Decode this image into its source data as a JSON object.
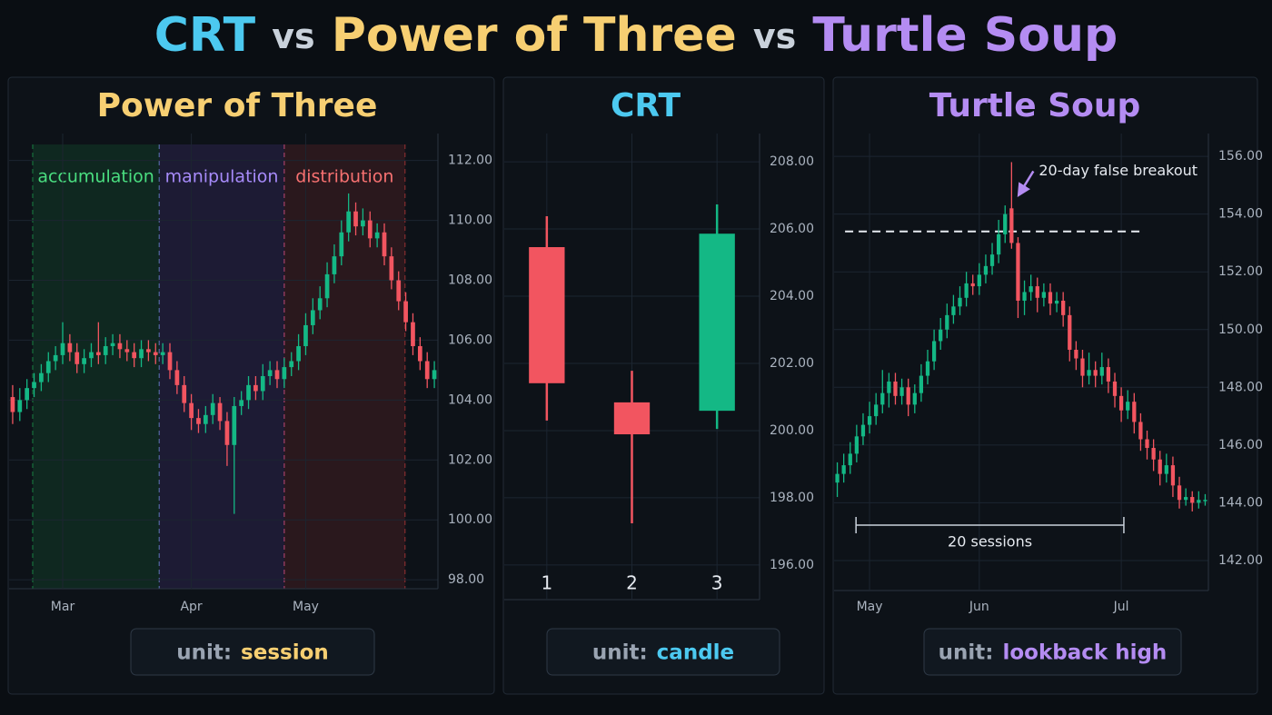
{
  "title_parts": [
    {
      "text": "CRT",
      "color": "#4cc9f0"
    },
    {
      "text": "vs",
      "color": "#c9d1db"
    },
    {
      "text": "Power of Three",
      "color": "#f7cf72"
    },
    {
      "text": "vs",
      "color": "#c9d1db"
    },
    {
      "text": "Turtle Soup",
      "color": "#b48cf2"
    }
  ],
  "chart_data": [
    {
      "type": "candlestick",
      "title": "Power of Three",
      "color": "#f7cf72",
      "up_color": "#14b885",
      "down_color": "#f25560",
      "unit_label": "unit:",
      "unit": "session",
      "ylim": [
        97.7,
        112.9
      ],
      "yticks": [
        {
          "value": 98,
          "label": "98.00"
        },
        {
          "value": 100,
          "label": "100.00"
        },
        {
          "value": 102,
          "label": "102.00"
        },
        {
          "value": 104,
          "label": "104.00"
        },
        {
          "value": 106,
          "label": "106.00"
        },
        {
          "value": 108,
          "label": "108.00"
        },
        {
          "value": 110,
          "label": "110.00"
        },
        {
          "value": 112,
          "label": "112.00"
        }
      ],
      "grid": true,
      "regions": [
        {
          "label": "accumulation",
          "color": "#22c55e",
          "text_color": "#4ade80",
          "from": 3.3,
          "to": 21
        },
        {
          "label": "manipulation",
          "color": "#8b5cf6",
          "text_color": "#a78bfa",
          "from": 21,
          "to": 38.5
        },
        {
          "label": "distribution",
          "color": "#ef4444",
          "text_color": "#f87171",
          "from": 38.5,
          "to": 55.4
        }
      ],
      "categories": [
        null,
        null,
        null,
        null,
        null,
        null,
        null,
        "Mar",
        null,
        null,
        null,
        null,
        null,
        null,
        null,
        null,
        null,
        null,
        null,
        null,
        null,
        null,
        null,
        null,
        null,
        "Apr",
        null,
        null,
        null,
        null,
        null,
        null,
        null,
        null,
        null,
        null,
        null,
        null,
        null,
        null,
        null,
        "May",
        null,
        null,
        null,
        null,
        null,
        null,
        null,
        null,
        null,
        null,
        null,
        null,
        null,
        null,
        null,
        null,
        null,
        null
      ],
      "ohlc": [
        [
          104.1,
          104.5,
          103.2,
          103.6
        ],
        [
          103.6,
          104.4,
          103.3,
          104.0
        ],
        [
          104.0,
          104.7,
          103.7,
          104.4
        ],
        [
          104.4,
          104.9,
          104.1,
          104.6
        ],
        [
          104.6,
          105.2,
          104.3,
          104.9
        ],
        [
          104.9,
          105.6,
          104.6,
          105.3
        ],
        [
          105.3,
          105.8,
          105.0,
          105.5
        ],
        [
          105.5,
          106.6,
          105.2,
          105.9
        ],
        [
          105.9,
          106.2,
          105.3,
          105.6
        ],
        [
          105.6,
          105.9,
          104.9,
          105.2
        ],
        [
          105.2,
          105.7,
          104.9,
          105.4
        ],
        [
          105.4,
          105.9,
          105.1,
          105.6
        ],
        [
          105.6,
          106.6,
          105.2,
          105.5
        ],
        [
          105.5,
          106.1,
          105.2,
          105.8
        ],
        [
          105.8,
          106.2,
          105.5,
          105.9
        ],
        [
          105.9,
          106.2,
          105.4,
          105.7
        ],
        [
          105.7,
          106.0,
          105.3,
          105.6
        ],
        [
          105.6,
          105.9,
          105.1,
          105.4
        ],
        [
          105.4,
          106.0,
          105.1,
          105.7
        ],
        [
          105.7,
          106.0,
          105.3,
          105.6
        ],
        [
          105.6,
          105.9,
          105.2,
          105.5
        ],
        [
          105.5,
          105.9,
          105.2,
          105.6
        ],
        [
          105.6,
          105.9,
          104.7,
          105.0
        ],
        [
          105.0,
          105.3,
          104.2,
          104.5
        ],
        [
          104.5,
          104.8,
          103.6,
          103.9
        ],
        [
          103.9,
          104.2,
          103.0,
          103.4
        ],
        [
          103.4,
          103.7,
          102.9,
          103.2
        ],
        [
          103.2,
          103.8,
          102.9,
          103.5
        ],
        [
          103.5,
          104.2,
          103.2,
          103.9
        ],
        [
          103.9,
          104.1,
          103.0,
          103.3
        ],
        [
          103.3,
          103.6,
          101.8,
          102.5
        ],
        [
          102.5,
          104.1,
          100.2,
          103.8
        ],
        [
          103.8,
          104.3,
          103.5,
          104.0
        ],
        [
          104.0,
          104.8,
          103.7,
          104.5
        ],
        [
          104.5,
          104.8,
          104.0,
          104.3
        ],
        [
          104.3,
          105.2,
          104.0,
          104.8
        ],
        [
          104.8,
          105.3,
          104.5,
          105.0
        ],
        [
          105.0,
          105.3,
          104.4,
          104.7
        ],
        [
          104.7,
          105.4,
          104.4,
          105.1
        ],
        [
          105.1,
          105.6,
          104.8,
          105.3
        ],
        [
          105.3,
          106.2,
          105.0,
          105.8
        ],
        [
          105.8,
          106.9,
          105.5,
          106.5
        ],
        [
          106.5,
          107.4,
          106.2,
          107.0
        ],
        [
          107.0,
          107.8,
          106.7,
          107.4
        ],
        [
          107.4,
          108.6,
          107.1,
          108.2
        ],
        [
          108.2,
          109.2,
          107.9,
          108.8
        ],
        [
          108.8,
          110.0,
          108.5,
          109.6
        ],
        [
          109.6,
          110.9,
          109.3,
          110.3
        ],
        [
          110.3,
          110.6,
          109.5,
          109.8
        ],
        [
          109.8,
          110.4,
          109.5,
          110.0
        ],
        [
          110.0,
          110.3,
          109.1,
          109.4
        ],
        [
          109.4,
          109.9,
          109.1,
          109.6
        ],
        [
          109.6,
          109.9,
          108.5,
          108.8
        ],
        [
          108.8,
          109.1,
          107.7,
          108.0
        ],
        [
          108.0,
          108.3,
          107.0,
          107.3
        ],
        [
          107.3,
          107.6,
          106.3,
          106.6
        ],
        [
          106.6,
          106.9,
          105.5,
          105.8
        ],
        [
          105.8,
          106.1,
          105.0,
          105.3
        ],
        [
          105.3,
          105.6,
          104.4,
          104.7
        ],
        [
          104.7,
          105.3,
          104.4,
          105.0
        ]
      ]
    },
    {
      "type": "candlestick",
      "title": "CRT",
      "color": "#4cc9f0",
      "up_color": "#14b885",
      "down_color": "#f25560",
      "unit_label": "unit:",
      "unit": "candle",
      "ylim": [
        194.97,
        208.84
      ],
      "yticks": [
        {
          "value": 196,
          "label": "196.00"
        },
        {
          "value": 198,
          "label": "198.00"
        },
        {
          "value": 200,
          "label": "200.00"
        },
        {
          "value": 202,
          "label": "202.00"
        },
        {
          "value": 204,
          "label": "204.00"
        },
        {
          "value": 206,
          "label": "206.00"
        },
        {
          "value": 208,
          "label": "208.00"
        }
      ],
      "grid": true,
      "categories": [
        "1",
        "2",
        "3"
      ],
      "ohlc": [
        [
          205.46,
          206.38,
          200.3,
          201.41
        ],
        [
          200.84,
          201.78,
          197.24,
          199.89
        ],
        [
          200.59,
          206.73,
          200.05,
          205.86
        ]
      ]
    },
    {
      "type": "candlestick",
      "title": "Turtle Soup",
      "color": "#b48cf2",
      "up_color": "#14b885",
      "down_color": "#f25560",
      "unit_label": "unit:",
      "unit": "lookback high",
      "ylim": [
        140.96,
        156.79
      ],
      "yticks": [
        {
          "value": 142,
          "label": "142.00"
        },
        {
          "value": 144,
          "label": "144.00"
        },
        {
          "value": 146,
          "label": "146.00"
        },
        {
          "value": 148,
          "label": "148.00"
        },
        {
          "value": 150,
          "label": "150.00"
        },
        {
          "value": 152,
          "label": "152.00"
        },
        {
          "value": 154,
          "label": "154.00"
        },
        {
          "value": 156,
          "label": "156.00"
        }
      ],
      "grid": true,
      "level": {
        "value": 153.4,
        "from": 1.7,
        "to": 47.5
      },
      "span": {
        "label": "20 sessions",
        "from": 3.4,
        "to": 44.9
      },
      "annotation": {
        "text": "20-day false breakout",
        "candle": 27
      },
      "categories": [
        null,
        null,
        null,
        null,
        null,
        "May",
        null,
        null,
        null,
        null,
        null,
        null,
        null,
        null,
        null,
        null,
        null,
        null,
        null,
        null,
        null,
        null,
        "Jun",
        null,
        null,
        null,
        null,
        null,
        null,
        null,
        null,
        null,
        null,
        null,
        null,
        null,
        null,
        null,
        null,
        null,
        null,
        null,
        null,
        null,
        "Jul",
        null,
        null,
        null,
        null,
        null,
        null,
        null,
        null,
        null,
        null,
        null,
        null,
        null
      ],
      "ohlc": [
        [
          144.7,
          145.4,
          144.2,
          145.0
        ],
        [
          145.0,
          145.7,
          144.7,
          145.3
        ],
        [
          145.3,
          146.1,
          145.0,
          145.7
        ],
        [
          145.7,
          146.7,
          145.4,
          146.3
        ],
        [
          146.3,
          147.1,
          146.0,
          146.7
        ],
        [
          146.7,
          147.5,
          146.4,
          147.0
        ],
        [
          147.0,
          147.8,
          146.7,
          147.4
        ],
        [
          147.4,
          148.6,
          147.1,
          147.8
        ],
        [
          147.8,
          148.5,
          147.3,
          148.2
        ],
        [
          148.2,
          148.5,
          147.4,
          147.7
        ],
        [
          147.7,
          148.3,
          147.4,
          148.0
        ],
        [
          148.0,
          148.3,
          147.0,
          147.4
        ],
        [
          147.4,
          148.1,
          147.1,
          147.8
        ],
        [
          147.8,
          148.8,
          147.5,
          148.4
        ],
        [
          148.4,
          149.3,
          148.1,
          148.9
        ],
        [
          148.9,
          150.0,
          148.6,
          149.6
        ],
        [
          149.6,
          150.4,
          149.3,
          150.0
        ],
        [
          150.0,
          150.9,
          149.7,
          150.5
        ],
        [
          150.5,
          151.2,
          150.2,
          150.8
        ],
        [
          150.8,
          151.5,
          150.5,
          151.1
        ],
        [
          151.1,
          152.0,
          150.8,
          151.6
        ],
        [
          151.6,
          151.9,
          151.2,
          151.5
        ],
        [
          151.5,
          152.3,
          151.2,
          151.9
        ],
        [
          151.9,
          152.6,
          151.6,
          152.2
        ],
        [
          152.2,
          153.0,
          151.9,
          152.6
        ],
        [
          152.6,
          153.8,
          152.3,
          153.3
        ],
        [
          153.3,
          154.3,
          153.0,
          154.0
        ],
        [
          154.2,
          155.8,
          152.8,
          153.0
        ],
        [
          153.0,
          153.2,
          150.4,
          151.0
        ],
        [
          151.0,
          151.7,
          150.5,
          151.3
        ],
        [
          151.3,
          151.9,
          151.0,
          151.5
        ],
        [
          151.5,
          151.8,
          150.6,
          151.1
        ],
        [
          151.1,
          151.6,
          150.8,
          151.3
        ],
        [
          151.3,
          151.6,
          150.5,
          150.9
        ],
        [
          150.9,
          151.3,
          150.6,
          151.0
        ],
        [
          151.0,
          151.3,
          150.1,
          150.5
        ],
        [
          150.5,
          150.8,
          148.9,
          149.3
        ],
        [
          149.3,
          149.6,
          148.6,
          149.0
        ],
        [
          149.0,
          149.3,
          148.0,
          148.4
        ],
        [
          148.4,
          149.2,
          148.1,
          148.6
        ],
        [
          148.6,
          148.9,
          148.0,
          148.4
        ],
        [
          148.4,
          149.2,
          148.1,
          148.7
        ],
        [
          148.7,
          149.0,
          147.8,
          148.2
        ],
        [
          148.2,
          148.5,
          147.3,
          147.7
        ],
        [
          147.7,
          148.0,
          146.8,
          147.2
        ],
        [
          147.2,
          147.9,
          146.9,
          147.5
        ],
        [
          147.5,
          147.8,
          146.4,
          146.8
        ],
        [
          146.8,
          147.1,
          145.8,
          146.2
        ],
        [
          146.2,
          146.5,
          145.5,
          145.9
        ],
        [
          145.9,
          146.2,
          145.1,
          145.5
        ],
        [
          145.5,
          145.8,
          144.6,
          145.0
        ],
        [
          145.0,
          145.7,
          144.7,
          145.3
        ],
        [
          145.3,
          145.6,
          144.2,
          144.6
        ],
        [
          144.6,
          144.9,
          143.8,
          144.1
        ],
        [
          144.1,
          144.5,
          143.9,
          144.2
        ],
        [
          144.2,
          144.4,
          143.7,
          144.0
        ],
        [
          144.0,
          144.4,
          143.8,
          144.1
        ],
        [
          144.1,
          144.3,
          143.9,
          144.1
        ]
      ]
    }
  ]
}
